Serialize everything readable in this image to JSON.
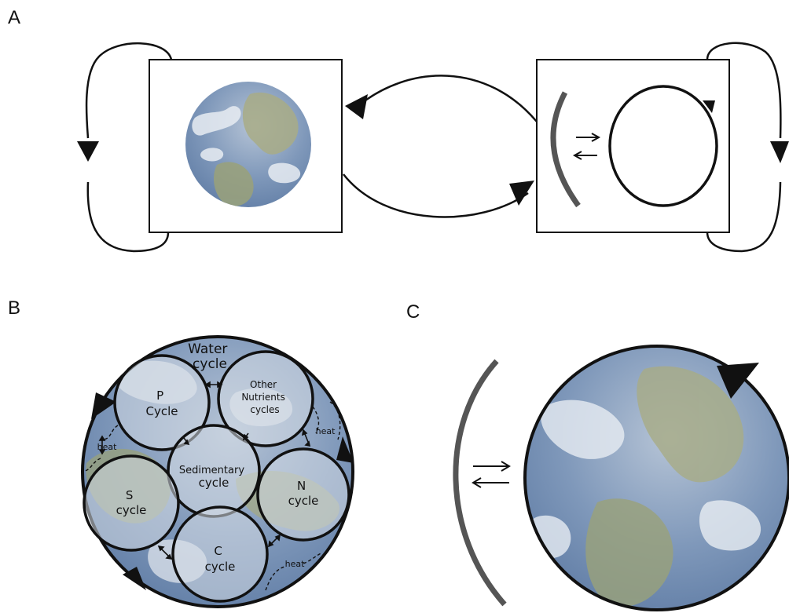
{
  "panels": {
    "a": "A",
    "b": "B",
    "c": "C"
  },
  "cycles": {
    "water": [
      "Water",
      "cycle"
    ],
    "p": [
      "P",
      "Cycle"
    ],
    "other": [
      "Other",
      "Nutrients",
      "cycles"
    ],
    "sedimentary": [
      "Sedimentary",
      "cycle"
    ],
    "s": [
      "S",
      "cycle"
    ],
    "n": [
      "N",
      "cycle"
    ],
    "c": [
      "C",
      "cycle"
    ]
  },
  "heat_label": "heat",
  "colors": {
    "ink": "#111111",
    "bracket": "#555555",
    "ocean": "#5a7ba8",
    "land": "#9aa27a",
    "cloud": "#e8edf3"
  }
}
